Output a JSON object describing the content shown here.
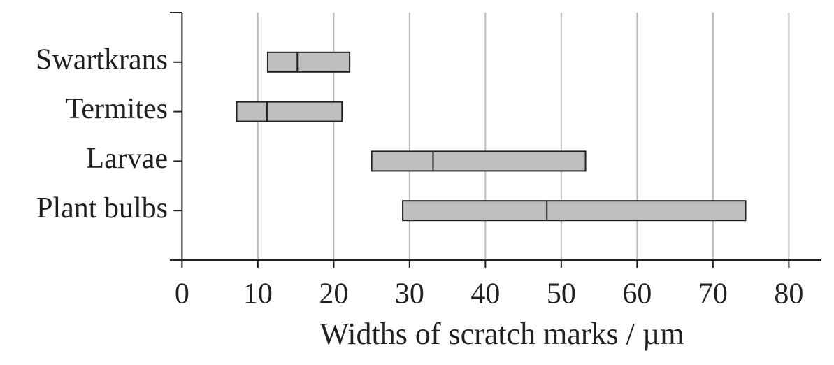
{
  "chart_data": {
    "type": "range",
    "xlabel": "Widths of scratch marks / µm",
    "categories": [
      "Swartkrans",
      "Termites",
      "Larvae",
      "Plant bulbs"
    ],
    "low": [
      11.3,
      7.2,
      25.0,
      29.1
    ],
    "median": [
      15.2,
      11.2,
      33.1,
      48.1
    ],
    "high": [
      22.1,
      21.1,
      53.2,
      74.3
    ],
    "color": "#bdbebf",
    "xlim": [
      -1.6,
      84.3
    ],
    "xticks": [
      0,
      10,
      20,
      30,
      40,
      50,
      60,
      70,
      80
    ],
    "grid": true
  }
}
